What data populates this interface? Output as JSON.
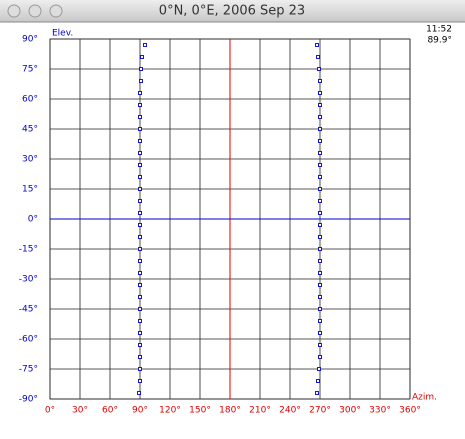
{
  "chart_data": {
    "type": "scatter",
    "title": "0°N, 0°E, 2006 Sep 23",
    "ylabel": "Elev.",
    "xlabel": "Azim.",
    "annotations": [
      "11:52",
      "89.9°"
    ],
    "xlim": [
      0,
      360
    ],
    "ylim": [
      -90,
      90
    ],
    "xticks": [
      {
        "value": 0,
        "label": "0°"
      },
      {
        "value": 30,
        "label": "30°"
      },
      {
        "value": 60,
        "label": "60°"
      },
      {
        "value": 90,
        "label": "90°"
      },
      {
        "value": 120,
        "label": "120°"
      },
      {
        "value": 150,
        "label": "150°"
      },
      {
        "value": 180,
        "label": "180°"
      },
      {
        "value": 210,
        "label": "210°"
      },
      {
        "value": 240,
        "label": "240°"
      },
      {
        "value": 270,
        "label": "270°"
      },
      {
        "value": 300,
        "label": "300°"
      },
      {
        "value": 330,
        "label": "330°"
      },
      {
        "value": 360,
        "label": "360°"
      }
    ],
    "yticks": [
      {
        "value": -90,
        "label": "-90°"
      },
      {
        "value": -75,
        "label": "-75°"
      },
      {
        "value": -60,
        "label": "-60°"
      },
      {
        "value": -45,
        "label": "-45°"
      },
      {
        "value": -30,
        "label": "-30°"
      },
      {
        "value": -15,
        "label": "-15°"
      },
      {
        "value": 0,
        "label": "0°"
      },
      {
        "value": 15,
        "label": "15°"
      },
      {
        "value": 30,
        "label": "30°"
      },
      {
        "value": 45,
        "label": "45°"
      },
      {
        "value": 60,
        "label": "60°"
      },
      {
        "value": 75,
        "label": "75°"
      },
      {
        "value": 90,
        "label": "90°"
      }
    ],
    "grid": true,
    "xtick_color": "#e00000",
    "ytick_color": "#0000cc",
    "series": [
      {
        "color": "#0000cc",
        "x": [
          89,
          90,
          90,
          90,
          90,
          90,
          90,
          90,
          90,
          90,
          90,
          90,
          90,
          90,
          90,
          90,
          90,
          90,
          90,
          90,
          90,
          90,
          90,
          90,
          90,
          90,
          91,
          91,
          92,
          95
        ],
        "values": [
          -87,
          -81,
          -75,
          -69,
          -63,
          -57,
          -51,
          -45,
          -39,
          -33,
          -27,
          -21,
          -15,
          -9,
          -3,
          3,
          9,
          15,
          21,
          27,
          33,
          39,
          45,
          51,
          57,
          63,
          69,
          75,
          81,
          87
        ]
      },
      {
        "color": "#0000cc",
        "x": [
          267,
          268,
          269,
          270,
          270,
          270,
          270,
          270,
          270,
          270,
          270,
          270,
          270,
          270,
          270,
          270,
          270,
          270,
          270,
          270,
          270,
          270,
          270,
          270,
          270,
          270,
          270,
          269,
          268,
          267
        ],
        "values": [
          -87,
          -81,
          -75,
          -69,
          -63,
          -57,
          -51,
          -45,
          -39,
          -33,
          -27,
          -21,
          -15,
          -9,
          -3,
          3,
          9,
          15,
          21,
          27,
          33,
          39,
          45,
          51,
          57,
          63,
          69,
          75,
          81,
          87
        ]
      }
    ]
  }
}
